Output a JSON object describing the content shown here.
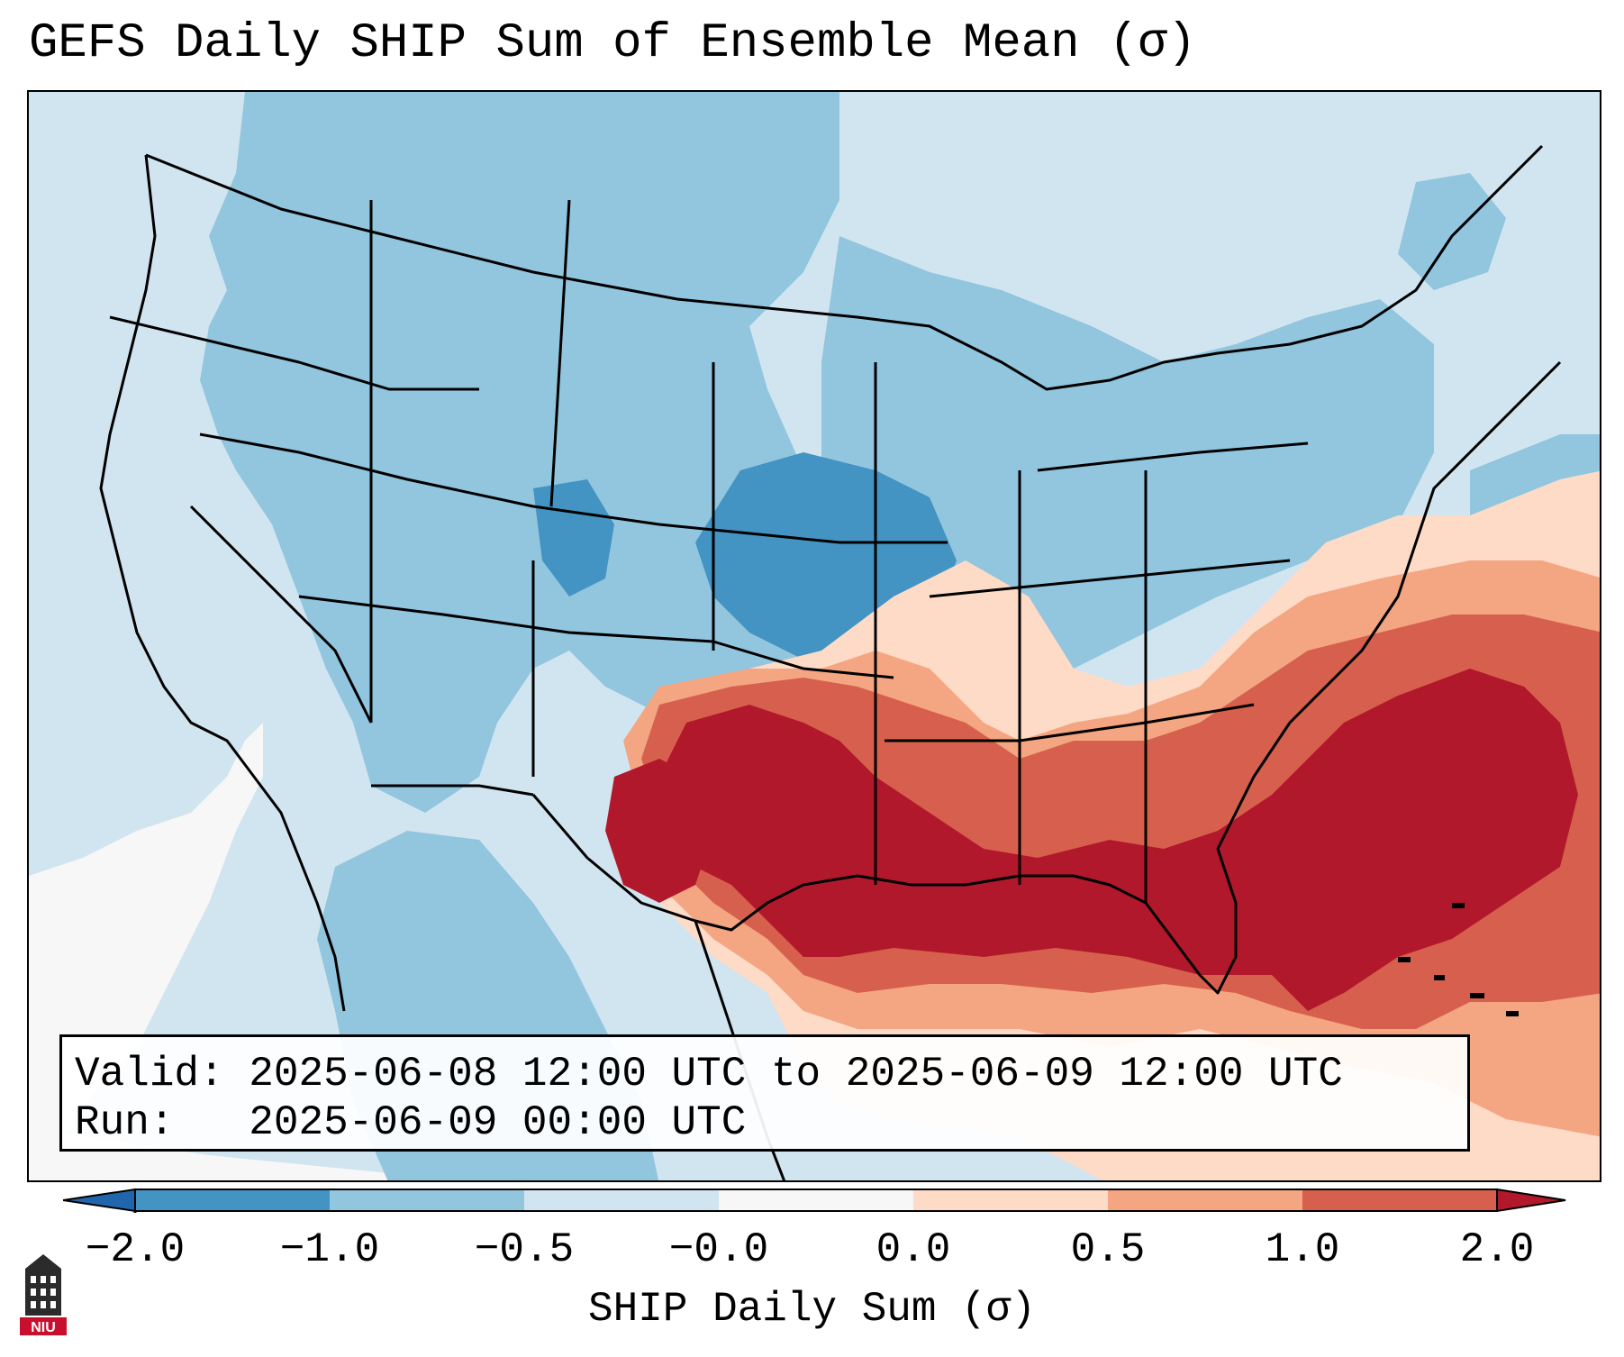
{
  "title": "GEFS Daily SHIP Sum of Ensemble Mean (σ)",
  "info": {
    "valid_label": "Valid:",
    "valid_value": "2025-06-08 12:00 UTC to 2025-06-09 12:00 UTC",
    "run_label": "Run:",
    "run_value": "2025-06-09 00:00 UTC"
  },
  "colorbar": {
    "label": "SHIP Daily Sum (σ)",
    "ticks": [
      "−2.0",
      "−1.0",
      "−0.5",
      "−0.0",
      "0.0",
      "0.5",
      "1.0",
      "2.0"
    ],
    "colors": [
      "#4393c3",
      "#92c5de",
      "#d1e5f0",
      "#f7f7f7",
      "#fddbc7",
      "#f4a582",
      "#d6604d",
      "#b2182b"
    ],
    "under_color": "#2166ac",
    "over_color": "#b2182b"
  },
  "logo": {
    "text": "NIU",
    "icon": "university-tower-icon"
  }
}
